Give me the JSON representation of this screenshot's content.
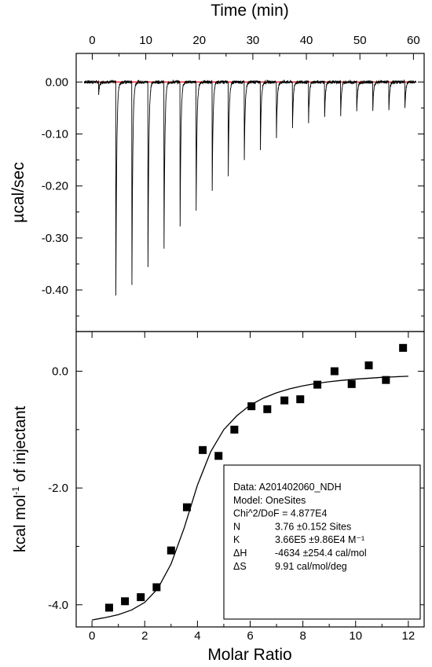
{
  "chart_data": [
    {
      "type": "line",
      "panel": "top",
      "title": "",
      "xlabel": "Time (min)",
      "ylabel": "µcal/sec",
      "xlim": [
        -3,
        62
      ],
      "ylim": [
        -0.48,
        0.055
      ],
      "xticks": [
        "0",
        "10",
        "20",
        "30",
        "40",
        "50",
        "60"
      ],
      "yticks": [
        "0.00",
        "-0.10",
        "-0.20",
        "-0.30",
        "-0.40"
      ],
      "baseline_color": "#ff0000",
      "trace_color": "#000000",
      "injections": {
        "times": [
          1.2,
          4.4,
          7.4,
          10.4,
          13.4,
          16.4,
          19.4,
          22.4,
          25.4,
          28.4,
          31.4,
          34.4,
          37.4,
          40.4,
          43.4,
          46.4,
          49.4,
          52.4,
          55.4,
          58.4
        ],
        "peak_heights": [
          -0.022,
          -0.435,
          -0.418,
          -0.38,
          -0.34,
          -0.298,
          -0.262,
          -0.22,
          -0.19,
          -0.158,
          -0.137,
          -0.112,
          -0.093,
          -0.082,
          -0.072,
          -0.067,
          -0.062,
          -0.058,
          -0.056,
          -0.055
        ]
      }
    },
    {
      "type": "scatter",
      "panel": "bottom",
      "title": "",
      "xlabel": "Molar Ratio",
      "ylabel": "kcal mol",
      "ylabel_sup": "-1",
      "ylabel_rest": " of injectant",
      "xlim": [
        -0.6,
        12.6
      ],
      "ylim": [
        -4.38,
        0.68
      ],
      "xticks": [
        "0",
        "2",
        "4",
        "6",
        "8",
        "10",
        "12"
      ],
      "yticks": [
        "0.0",
        "-2.0",
        "-4.0"
      ],
      "points": {
        "x": [
          0.65,
          1.25,
          1.85,
          2.45,
          3.0,
          3.6,
          4.2,
          4.8,
          5.4,
          6.05,
          6.65,
          7.3,
          7.9,
          8.55,
          9.2,
          9.85,
          10.5,
          11.15,
          11.8
        ],
        "y": [
          -4.05,
          -3.94,
          -3.87,
          -3.7,
          -3.07,
          -2.33,
          -1.35,
          -1.45,
          -1.0,
          -0.6,
          -0.65,
          -0.5,
          -0.48,
          -0.23,
          0.0,
          -0.22,
          0.1,
          -0.15,
          0.4
        ]
      },
      "fit": {
        "x": [
          0.0,
          0.5,
          1.0,
          1.5,
          2.0,
          2.5,
          3.0,
          3.5,
          4.0,
          4.5,
          5.0,
          5.5,
          6.0,
          6.5,
          7.0,
          7.5,
          8.0,
          8.5,
          9.0,
          9.5,
          10.0,
          10.5,
          11.0,
          11.5,
          12.0
        ],
        "y": [
          -4.26,
          -4.22,
          -4.17,
          -4.09,
          -3.96,
          -3.72,
          -3.3,
          -2.68,
          -1.95,
          -1.38,
          -1.0,
          -0.76,
          -0.58,
          -0.46,
          -0.37,
          -0.3,
          -0.25,
          -0.21,
          -0.18,
          -0.155,
          -0.135,
          -0.12,
          -0.105,
          -0.095,
          -0.085
        ]
      },
      "annotation": {
        "lines": [
          {
            "label": "Data: A201402060_NDH",
            "value": ""
          },
          {
            "label": "Model: OneSites",
            "value": ""
          },
          {
            "label": "Chi^2/DoF = 4.877E4",
            "value": ""
          },
          {
            "label": "N",
            "value": "3.76    ±0.152 Sites"
          },
          {
            "label": "K",
            "value": "3.66E5 ±9.86E4 M⁻¹"
          },
          {
            "label": "ΔH",
            "value": "-4634   ±254.4 cal/mol"
          },
          {
            "label": "ΔS",
            "value": "9.91 cal/mol/deg"
          }
        ]
      }
    }
  ]
}
